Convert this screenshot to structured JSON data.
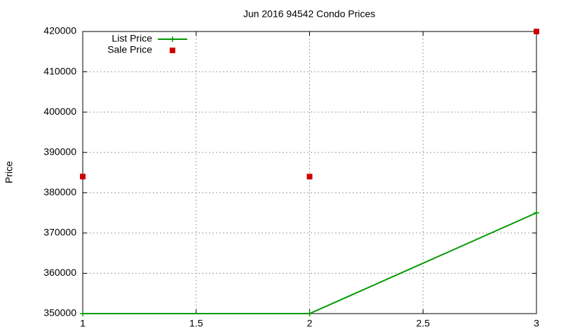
{
  "chart_data": {
    "type": "scatter",
    "title": "Jun 2016 94542 Condo Prices",
    "y_label": "Price",
    "x": [
      1,
      2,
      3
    ],
    "series": [
      {
        "name": "List Price",
        "color": "#009900",
        "style": "linespoints",
        "values": [
          350000,
          350000,
          375000
        ]
      },
      {
        "name": "Sale Price",
        "color": "#cc0000",
        "style": "points",
        "values": [
          384000,
          384000,
          420000
        ]
      }
    ],
    "xlim": [
      1,
      3
    ],
    "xticks": [
      1,
      1.5,
      2,
      2.5,
      3
    ],
    "ylim": [
      350000,
      420000
    ],
    "yticks": [
      350000,
      360000,
      370000,
      380000,
      390000,
      400000,
      410000,
      420000
    ],
    "grid": true,
    "legend": "top-left"
  }
}
